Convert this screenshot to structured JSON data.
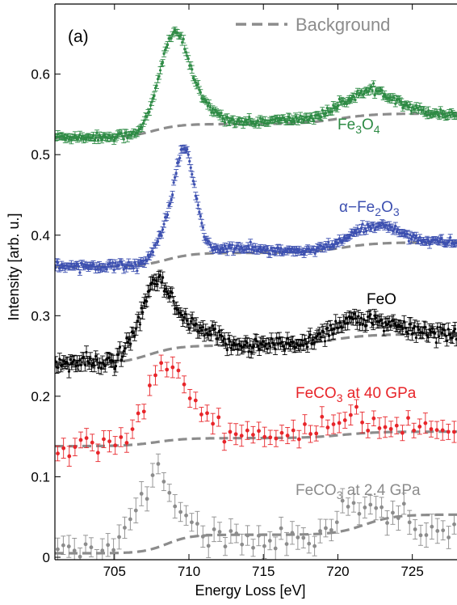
{
  "chart_data": {
    "type": "line",
    "panel_label": "(a)",
    "xlabel": "Energy Loss [eV]",
    "ylabel": "Intensity [arb. u.]",
    "xlim": [
      701,
      728
    ],
    "ylim": [
      -0.003,
      0.687
    ],
    "x_ticks": [
      705,
      710,
      715,
      720,
      725
    ],
    "y_ticks": [
      0,
      0.1,
      0.2,
      0.3,
      0.4,
      0.5,
      0.6
    ],
    "x_tick_labels": [
      "705",
      "710",
      "715",
      "720",
      "725"
    ],
    "y_tick_labels": [
      "0",
      "0.1",
      "0.2",
      "0.3",
      "0.4",
      "0.5",
      "0.6"
    ],
    "grid": false,
    "legend": {
      "placement": "top-right",
      "entries": [
        {
          "label": "Background",
          "style": "dashed",
          "color": "#8c8c8c"
        }
      ]
    },
    "background_color": "#8c8c8c",
    "series": [
      {
        "name": "Fe3O4",
        "label_parts": [
          {
            "t": "Fe"
          },
          {
            "t": "3",
            "sub": true
          },
          {
            "t": "O"
          },
          {
            "t": "4",
            "sub": true
          }
        ],
        "color": "#2e8b45",
        "points": 330,
        "noise": 0.0025,
        "err": 0.004,
        "base": 0.522,
        "edges": [
          {
            "x0": 707.3,
            "w": 0.7,
            "h": 0.016
          },
          {
            "x0": 719.5,
            "w": 1.2,
            "h": 0.012
          }
        ],
        "peaks": [
          {
            "c": 709.0,
            "a": 0.11,
            "w": 0.95
          },
          {
            "c": 710.8,
            "a": 0.018,
            "w": 1.2
          },
          {
            "c": 722.2,
            "a": 0.03,
            "w": 1.8
          },
          {
            "c": 716.5,
            "a": 0.004,
            "w": 2.0
          }
        ],
        "bg": {
          "base": 0.521,
          "edges": [
            {
              "x0": 707.6,
              "w": 0.9,
              "h": 0.017
            },
            {
              "x0": 720.0,
              "w": 1.2,
              "h": 0.013
            }
          ]
        }
      },
      {
        "name": "α-Fe2O3",
        "label_parts": [
          {
            "t": "α−Fe"
          },
          {
            "t": "2",
            "sub": true
          },
          {
            "t": "O"
          },
          {
            "t": "3",
            "sub": true
          }
        ],
        "color": "#3d50b0",
        "points": 330,
        "noise": 0.0025,
        "err": 0.004,
        "base": 0.362,
        "edges": [
          {
            "x0": 708.0,
            "w": 0.7,
            "h": 0.017
          },
          {
            "x0": 720.0,
            "w": 1.0,
            "h": 0.012
          }
        ],
        "peaks": [
          {
            "c": 709.7,
            "a": 0.128,
            "w": 0.7
          },
          {
            "c": 708.3,
            "a": 0.022,
            "w": 0.6
          },
          {
            "c": 722.6,
            "a": 0.022,
            "w": 1.6
          },
          {
            "c": 713.3,
            "a": 0.005,
            "w": 1.5
          }
        ],
        "bg": {
          "base": 0.361,
          "edges": [
            {
              "x0": 708.5,
              "w": 0.9,
              "h": 0.017
            },
            {
              "x0": 720.3,
              "w": 1.2,
              "h": 0.013
            }
          ]
        }
      },
      {
        "name": "FeO",
        "label_parts": [
          {
            "t": "FeO"
          }
        ],
        "color": "#000000",
        "points": 300,
        "noise": 0.005,
        "err": 0.007,
        "base": 0.241,
        "edges": [
          {
            "x0": 706.5,
            "w": 0.8,
            "h": 0.022
          },
          {
            "x0": 719.0,
            "w": 1.2,
            "h": 0.015
          }
        ],
        "peaks": [
          {
            "c": 707.8,
            "a": 0.078,
            "w": 1.0
          },
          {
            "c": 710.2,
            "a": 0.02,
            "w": 1.4
          },
          {
            "c": 720.8,
            "a": 0.018,
            "w": 1.3
          },
          {
            "c": 723.5,
            "a": 0.008,
            "w": 1.5
          }
        ],
        "bg": {
          "base": 0.24,
          "edges": [
            {
              "x0": 707.3,
              "w": 1.0,
              "h": 0.023
            },
            {
              "x0": 719.6,
              "w": 1.3,
              "h": 0.014
            }
          ]
        }
      },
      {
        "name": "FeCO3 at 40 GPa",
        "label_parts": [
          {
            "t": "FeCO"
          },
          {
            "t": "3",
            "sub": true
          },
          {
            "t": " at 40 GPa"
          }
        ],
        "color": "#e8252a",
        "points": 70,
        "noise": 0.007,
        "err": 0.011,
        "base": 0.139,
        "edges": [
          {
            "x0": 706.5,
            "w": 0.8,
            "h": 0.012
          },
          {
            "x0": 719.5,
            "w": 1.2,
            "h": 0.008
          }
        ],
        "peaks": [
          {
            "c": 708.5,
            "a": 0.085,
            "w": 1.2
          },
          {
            "c": 711.0,
            "a": 0.018,
            "w": 1.5
          },
          {
            "c": 721.2,
            "a": 0.015,
            "w": 1.4
          }
        ],
        "bg": {
          "base": 0.138,
          "edges": [
            {
              "x0": 707.8,
              "w": 1.0,
              "h": 0.01
            },
            {
              "x0": 720.3,
              "w": 1.2,
              "h": 0.008
            }
          ]
        }
      },
      {
        "name": "FeCO3 at 2.4 GPa",
        "label_parts": [
          {
            "t": "FeCO"
          },
          {
            "t": "3",
            "sub": true
          },
          {
            "t": " at 2.4 GPa"
          }
        ],
        "color": "#8c8c8c",
        "points": 72,
        "noise": 0.008,
        "err": 0.013,
        "base": 0.006,
        "edges": [
          {
            "x0": 706.0,
            "w": 0.8,
            "h": 0.015
          },
          {
            "x0": 719.5,
            "w": 1.2,
            "h": 0.015
          }
        ],
        "peaks": [
          {
            "c": 707.8,
            "a": 0.08,
            "w": 1.1
          },
          {
            "c": 710.2,
            "a": 0.012,
            "w": 1.2
          },
          {
            "c": 721.0,
            "a": 0.028,
            "w": 1.3
          },
          {
            "c": 724.0,
            "a": 0.015,
            "w": 1.6
          }
        ],
        "bg": {
          "base": 0.005,
          "edges": [
            {
              "x0": 708.5,
              "w": 0.8,
              "h": 0.023
            },
            {
              "x0": 721.8,
              "w": 1.0,
              "h": 0.025
            }
          ]
        }
      }
    ]
  }
}
